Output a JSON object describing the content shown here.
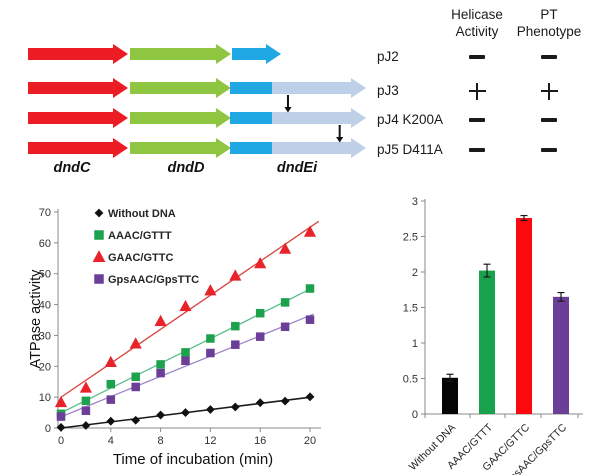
{
  "gene_diagram": {
    "gene_labels": [
      "dndC",
      "dndD",
      "dndEi"
    ],
    "colors": {
      "red": "#EC1C24",
      "green": "#8EC642",
      "blue": "#1FA8E4",
      "light": "#BECFE8"
    },
    "rows": [
      {
        "plasmid": "pJ2",
        "dndEi_truncated": true,
        "mutation_pos": null
      },
      {
        "plasmid": "pJ3",
        "dndEi_truncated": false,
        "mutation_pos": null
      },
      {
        "plasmid": "pJ4 K200A",
        "dndEi_truncated": false,
        "mutation_pos": 0.17
      },
      {
        "plasmid": "pJ5 D411A",
        "dndEi_truncated": false,
        "mutation_pos": 0.72
      }
    ]
  },
  "table": {
    "col_headers": [
      [
        "Helicase",
        "Activity"
      ],
      [
        "PT",
        "Phenotype"
      ]
    ],
    "rows": [
      {
        "plasmid": "pJ2",
        "helicase_activity": "-",
        "pt_phenotype": "-"
      },
      {
        "plasmid": "pJ3",
        "helicase_activity": "+",
        "pt_phenotype": "+"
      },
      {
        "plasmid": "pJ4 K200A",
        "helicase_activity": "-",
        "pt_phenotype": "-"
      },
      {
        "plasmid": "pJ5 D411A",
        "helicase_activity": "-",
        "pt_phenotype": "-"
      }
    ]
  },
  "chart_data": [
    {
      "type": "line",
      "title": "",
      "xlabel": "Time of incubation (min)",
      "ylabel": "ATPase activity",
      "x": [
        0,
        2,
        4,
        6,
        8,
        10,
        12,
        14,
        16,
        18,
        20
      ],
      "xticks": [
        0,
        4,
        8,
        12,
        16,
        20
      ],
      "yticks": [
        0,
        10,
        20,
        30,
        40,
        50,
        60,
        70
      ],
      "xlim": [
        0,
        21
      ],
      "ylim": [
        0,
        70
      ],
      "grid": false,
      "legend_position": "inside-top-left",
      "trendlines": true,
      "series": [
        {
          "name": "Without DNA",
          "marker": "diamond",
          "color": "#111111",
          "line_color": "#1a1a1a",
          "values": [
            0.2,
            0.8,
            2.2,
            2.5,
            4.2,
            5.0,
            6.0,
            6.8,
            8.2,
            8.7,
            10.1
          ]
        },
        {
          "name": "AAAC/GTTT",
          "marker": "square",
          "color": "#1CA24C",
          "line_color": "#5BBD8B",
          "values": [
            4.6,
            8.8,
            14.2,
            16.6,
            20.6,
            24.5,
            29.0,
            33.0,
            37.2,
            40.7,
            45.2
          ]
        },
        {
          "name": "GAAC/GTTC",
          "marker": "triangle",
          "color": "#E8232A",
          "line_color": "#D6453E",
          "values": [
            8.3,
            13.0,
            21.3,
            27.3,
            34.6,
            39.4,
            44.5,
            49.3,
            53.3,
            58.0,
            63.5
          ]
        },
        {
          "name": "GpsAAC/GpsTTC",
          "marker": "square",
          "color": "#6B3E98",
          "line_color": "#9D86C8",
          "values": [
            3.7,
            5.6,
            9.2,
            13.3,
            17.8,
            21.8,
            24.3,
            27.0,
            29.6,
            32.8,
            35.1
          ]
        }
      ]
    },
    {
      "type": "bar",
      "title": "",
      "xlabel": "",
      "ylabel": "",
      "categories": [
        "Without DNA",
        "AAAC/GTTT",
        "GAAC/GTTC",
        "GpsAAC/GpsTTC"
      ],
      "values": [
        0.51,
        2.02,
        2.76,
        1.65
      ],
      "errors": [
        0.05,
        0.09,
        0.035,
        0.06
      ],
      "colors": [
        "#050505",
        "#17A24B",
        "#FA0A0F",
        "#6B3E98"
      ],
      "yticks": [
        0,
        0.5,
        1,
        1.5,
        2,
        2.5,
        3
      ],
      "ylim": [
        0,
        3
      ],
      "grid": false
    }
  ]
}
